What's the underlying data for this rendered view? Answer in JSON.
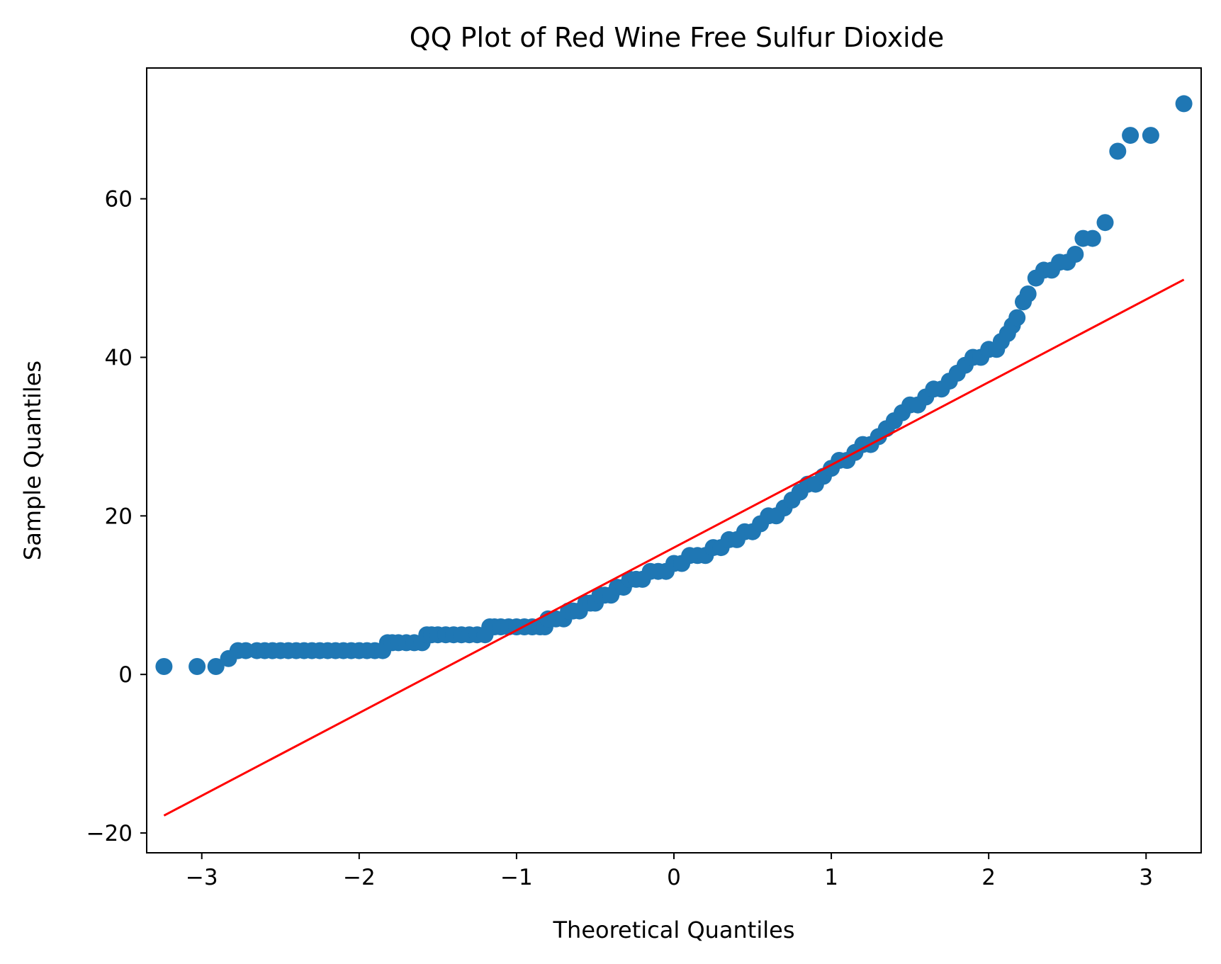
{
  "chart_data": {
    "type": "scatter",
    "title": "QQ Plot of Red Wine Free Sulfur Dioxide",
    "xlabel": "Theoretical Quantiles",
    "ylabel": "Sample Quantiles",
    "xlim": [
      -3.35,
      3.35
    ],
    "ylim": [
      -22.5,
      76.5
    ],
    "xticks": [
      -3,
      -2,
      -1,
      0,
      1,
      2,
      3
    ],
    "xtick_labels": [
      "−3",
      "−2",
      "−1",
      "0",
      "1",
      "2",
      "3"
    ],
    "yticks": [
      -20,
      0,
      20,
      40,
      60
    ],
    "ytick_labels": [
      "−20",
      "0",
      "20",
      "40",
      "60"
    ],
    "grid": false,
    "colors": {
      "points": "#1f77b4",
      "line": "#ff0000"
    },
    "reference_line": {
      "x": [
        -3.24,
        3.24
      ],
      "y": [
        -17.8,
        49.8
      ]
    },
    "series": [
      {
        "x": [
          -3.24,
          -3.03,
          -2.91,
          -2.83,
          -2.77,
          -2.72,
          -2.65,
          -2.6,
          -2.55,
          -2.5,
          -2.45,
          -2.4,
          -2.35,
          -2.3,
          -2.25,
          -2.2,
          -2.15,
          -2.1,
          -2.05,
          -2.0,
          -1.95,
          -1.9,
          -1.85,
          -1.82,
          -1.79,
          -1.75,
          -1.7,
          -1.65,
          -1.6,
          -1.57,
          -1.54,
          -1.5,
          -1.45,
          -1.4,
          -1.35,
          -1.3,
          -1.25,
          -1.2,
          -1.17,
          -1.14,
          -1.1,
          -1.05,
          -1.0,
          -0.95,
          -0.9,
          -0.85,
          -0.82,
          -0.8,
          -0.75,
          -0.7,
          -0.67,
          -0.64,
          -0.6,
          -0.56,
          -0.53,
          -0.5,
          -0.47,
          -0.44,
          -0.4,
          -0.36,
          -0.32,
          -0.28,
          -0.24,
          -0.2,
          -0.15,
          -0.1,
          -0.05,
          0.0,
          0.05,
          0.1,
          0.15,
          0.2,
          0.25,
          0.3,
          0.35,
          0.4,
          0.45,
          0.5,
          0.55,
          0.6,
          0.65,
          0.7,
          0.75,
          0.8,
          0.85,
          0.9,
          0.95,
          1.0,
          1.05,
          1.1,
          1.15,
          1.2,
          1.25,
          1.3,
          1.35,
          1.4,
          1.45,
          1.5,
          1.55,
          1.6,
          1.65,
          1.7,
          1.75,
          1.8,
          1.85,
          1.9,
          1.95,
          2.0,
          2.05,
          2.08,
          2.12,
          2.15,
          2.18,
          2.22,
          2.25,
          2.3,
          2.35,
          2.4,
          2.45,
          2.5,
          2.55,
          2.6,
          2.66,
          2.74,
          2.82,
          2.9,
          3.03,
          3.24
        ],
        "y": [
          1,
          1,
          1,
          2,
          3,
          3,
          3,
          3,
          3,
          3,
          3,
          3,
          3,
          3,
          3,
          3,
          3,
          3,
          3,
          3,
          3,
          3,
          3,
          4,
          4,
          4,
          4,
          4,
          4,
          5,
          5,
          5,
          5,
          5,
          5,
          5,
          5,
          5,
          6,
          6,
          6,
          6,
          6,
          6,
          6,
          6,
          6,
          7,
          7,
          7,
          8,
          8,
          8,
          9,
          9,
          9,
          10,
          10,
          10,
          11,
          11,
          12,
          12,
          12,
          13,
          13,
          13,
          14,
          14,
          15,
          15,
          15,
          16,
          16,
          17,
          17,
          18,
          18,
          19,
          20,
          20,
          21,
          22,
          23,
          24,
          24,
          25,
          26,
          27,
          27,
          28,
          29,
          29,
          30,
          31,
          32,
          33,
          34,
          34,
          35,
          36,
          36,
          37,
          38,
          39,
          40,
          40,
          41,
          41,
          42,
          43,
          44,
          45,
          47,
          48,
          50,
          51,
          51,
          52,
          52,
          53,
          55,
          55,
          57,
          66,
          68,
          68,
          72
        ]
      }
    ]
  }
}
